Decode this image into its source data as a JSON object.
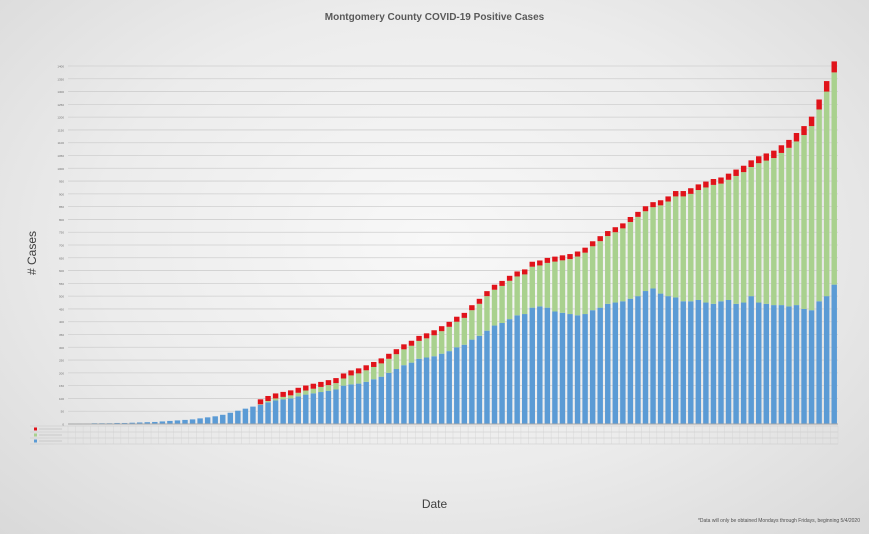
{
  "chart_data": {
    "type": "bar",
    "stacked": true,
    "title": "Montgomery County COVID-19 Positive Cases",
    "xlabel": "Date",
    "ylabel": "# Cases",
    "ylim": [
      0,
      1400
    ],
    "yticks": [
      0,
      50,
      100,
      150,
      200,
      250,
      300,
      350,
      400,
      450,
      500,
      550,
      600,
      650,
      700,
      750,
      800,
      850,
      900,
      950,
      1000,
      1050,
      1100,
      1150,
      1200,
      1250,
      1300,
      1350,
      1400
    ],
    "grid": true,
    "legend": "data-table-left",
    "footnote": "*Data will only be obtained Mondays through Fridays, beginning 5/4/2020",
    "series": [
      {
        "color": "#5b9bd5",
        "values": [
          2,
          2,
          2,
          3,
          3,
          3,
          4,
          4,
          5,
          6,
          7,
          8,
          10,
          12,
          14,
          16,
          18,
          22,
          26,
          30,
          36,
          44,
          52,
          60,
          68,
          75,
          85,
          92,
          96,
          100,
          108,
          115,
          120,
          125,
          130,
          135,
          150,
          155,
          158,
          165,
          175,
          185,
          200,
          215,
          230,
          240,
          255,
          260,
          265,
          275,
          285,
          300,
          310,
          330,
          345,
          365,
          385,
          395,
          410,
          425,
          430,
          455,
          460,
          455,
          440,
          435,
          430,
          425,
          430,
          445,
          455,
          470,
          475,
          480,
          490,
          500,
          520,
          530,
          510,
          500,
          495,
          480,
          480,
          485,
          475,
          470,
          480,
          485,
          470,
          475,
          500,
          475,
          470,
          465,
          465,
          460,
          465,
          450,
          445,
          480,
          500,
          545
        ]
      },
      {
        "color": "#a9d18e",
        "values": [
          0,
          0,
          0,
          0,
          0,
          0,
          0,
          0,
          0,
          0,
          0,
          0,
          0,
          0,
          0,
          0,
          0,
          0,
          0,
          0,
          0,
          0,
          0,
          0,
          0,
          2,
          5,
          8,
          10,
          12,
          14,
          16,
          18,
          20,
          22,
          25,
          28,
          35,
          40,
          45,
          48,
          52,
          55,
          58,
          62,
          66,
          70,
          75,
          82,
          88,
          95,
          100,
          105,
          115,
          125,
          135,
          140,
          145,
          150,
          152,
          155,
          160,
          160,
          175,
          195,
          205,
          215,
          230,
          240,
          250,
          260,
          265,
          275,
          285,
          300,
          310,
          312,
          318,
          345,
          370,
          395,
          410,
          420,
          430,
          450,
          465,
          460,
          470,
          500,
          510,
          505,
          545,
          560,
          575,
          595,
          620,
          640,
          680,
          720,
          750,
          800,
          830
        ]
      },
      {
        "color": "#e0131a",
        "values": [
          0,
          0,
          0,
          0,
          0,
          0,
          0,
          0,
          0,
          0,
          0,
          0,
          0,
          0,
          0,
          0,
          0,
          0,
          0,
          0,
          0,
          0,
          0,
          0,
          0,
          1,
          1,
          2,
          2,
          3,
          3,
          4,
          4,
          4,
          5,
          5,
          5,
          6,
          6,
          6,
          6,
          7,
          7,
          7,
          8,
          8,
          8,
          8,
          9,
          9,
          9,
          10,
          10,
          10,
          11,
          11,
          11,
          12,
          12,
          13,
          13,
          13,
          14,
          14,
          14,
          15,
          15,
          15,
          16,
          16,
          16,
          17,
          17,
          18,
          18,
          18,
          19,
          19,
          20,
          20,
          21,
          21,
          22,
          22,
          23,
          23,
          24,
          24,
          25,
          25,
          26,
          27,
          28,
          29,
          30,
          31,
          33,
          35,
          37,
          39,
          41,
          43
        ]
      }
    ]
  }
}
